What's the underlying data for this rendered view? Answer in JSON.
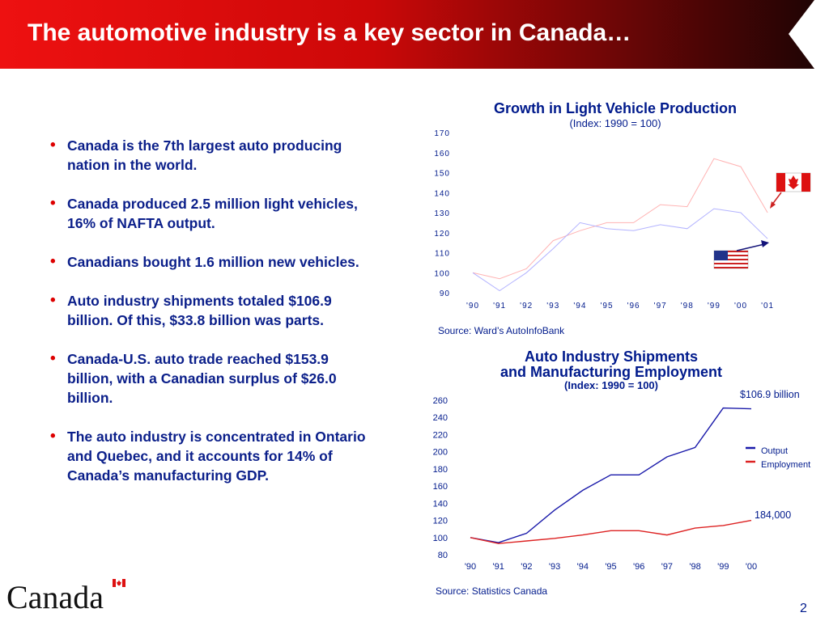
{
  "slide": {
    "title": "The automotive industry is a key sector in Canada…",
    "page_number": "2",
    "logo_text": "Canada"
  },
  "colors": {
    "banner_left": "#ee1111",
    "banner_right": "#1a0404",
    "title_blue": "#001a8c",
    "bullet_red": "#dd0000",
    "canada_series": "#ffb3b3",
    "us_series": "#b3b3ff",
    "output_series": "#1a1aaa",
    "employment_series": "#dd2222"
  },
  "bullets": [
    "Canada is the 7th largest auto producing nation in the world.",
    "Canada produced 2.5 million light vehicles, 16% of NAFTA output.",
    "Canadians bought 1.6 million new vehicles.",
    "Auto industry shipments totaled $106.9 billion.  Of this, $33.8 billion was parts.",
    "Canada-U.S. auto trade reached $153.9 billion, with a Canadian surplus of $26.0 billion.",
    "The auto industry is concentrated in Ontario and Quebec, and it accounts for 14% of Canada’s manufacturing GDP."
  ],
  "chart_data": [
    {
      "type": "line",
      "title": "Growth in Light Vehicle Production",
      "subtitle": "(Index: 1990 = 100)",
      "source": "Source: Ward’s AutoInfoBank",
      "x": [
        "'90",
        "'91",
        "'92",
        "'93",
        "'94",
        "'95",
        "'96",
        "'97",
        "'98",
        "'99",
        "'00",
        "'01"
      ],
      "ylim": [
        90,
        170
      ],
      "yticks": [
        90,
        100,
        110,
        120,
        130,
        140,
        150,
        160,
        170
      ],
      "legend": "flag icons with arrows (Canada, United States)",
      "series": [
        {
          "icon": "canada-flag",
          "values": [
            100,
            97,
            102,
            116,
            121,
            125,
            125,
            134,
            133,
            157,
            153,
            130
          ]
        },
        {
          "icon": "us-flag",
          "values": [
            100,
            91,
            100,
            112,
            125,
            122,
            121,
            124,
            122,
            132,
            130,
            117
          ]
        }
      ]
    },
    {
      "type": "line",
      "title": "Auto Industry Shipments",
      "title_line2": "and Manufacturing Employment",
      "subtitle": "(Index: 1990 = 100)",
      "source": "Source: Statistics Canada",
      "x": [
        "'90",
        "'91",
        "'92",
        "'93",
        "'94",
        "'95",
        "'96",
        "'97",
        "'98",
        "'99",
        "'00"
      ],
      "ylim": [
        80,
        260
      ],
      "yticks": [
        80,
        100,
        120,
        140,
        160,
        180,
        200,
        220,
        240,
        260
      ],
      "legend_position": "right",
      "series": [
        {
          "name": "Output",
          "values": [
            100,
            94,
            105,
            132,
            155,
            173,
            173,
            194,
            205,
            251,
            250
          ]
        },
        {
          "name": "Employment",
          "values": [
            100,
            93,
            96,
            99,
            103,
            108,
            108,
            103,
            111,
            114,
            120
          ]
        }
      ],
      "annotations": [
        "$106.9 billion",
        "184,000"
      ]
    }
  ]
}
